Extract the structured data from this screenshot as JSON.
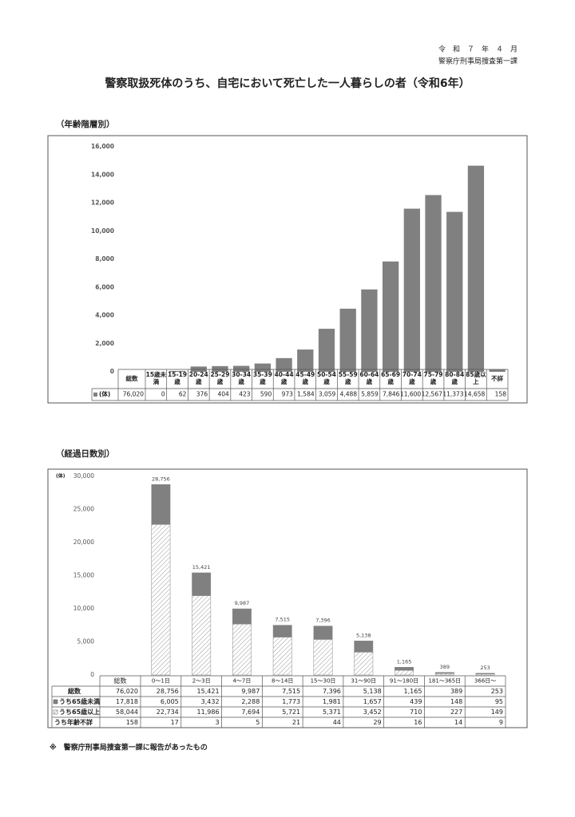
{
  "header": {
    "date": "令　和　７　年　４　月",
    "office": "警察庁刑事局捜査第一課",
    "title": "警察取扱死体のうち、自宅において死亡した一人暮らしの者（令和6年）"
  },
  "chart_data": [
    {
      "type": "bar",
      "title": "（年齢階層別）",
      "name": "(体)",
      "color": "#808080",
      "categories": [
        "15歳未満",
        "15-19歳",
        "20-24歳",
        "25-29歳",
        "30-34歳",
        "35-39歳",
        "40-44歳",
        "45-49歳",
        "50-54歳",
        "55-59歳",
        "60-64歳",
        "65-69歳",
        "70-74歳",
        "75-79歳",
        "80-84歳",
        "85歳以上",
        "不詳"
      ],
      "values": [
        0,
        62,
        376,
        404,
        423,
        590,
        973,
        1584,
        3059,
        4488,
        5859,
        7846,
        11600,
        12567,
        11373,
        14658,
        158
      ],
      "value_labels": [
        "0",
        "62",
        "376",
        "404",
        "423",
        "590",
        "973",
        "1,584",
        "3,059",
        "4,488",
        "5,859",
        "7,846",
        "11,600",
        "12,567",
        "11,373",
        "14,658",
        "158"
      ],
      "total_header": "総数",
      "total": {
        "value": 76020,
        "label": "76,020"
      },
      "ylim": [
        0,
        16000
      ],
      "yticks": [
        0,
        {
          "value": 2000,
          "label": "2,000"
        },
        {
          "value": 4000,
          "label": "4,000"
        },
        {
          "value": 6000,
          "label": "6,000"
        },
        {
          "value": 8000,
          "label": "8,000"
        },
        {
          "value": 10000,
          "label": "10,000"
        },
        {
          "value": 12000,
          "label": "12,000"
        },
        {
          "value": 14000,
          "label": "14,000"
        },
        {
          "value": 16000,
          "label": "16,000"
        }
      ]
    },
    {
      "type": "stacked_bar",
      "title": "（経過日数別）",
      "unit": "(体)",
      "total_header": "総数",
      "categories": [
        "0～1日",
        "2～3日",
        "4～7日",
        "8～14日",
        "15～30日",
        "31～90日",
        "91～180日",
        "181～365日",
        "366日～"
      ],
      "totals": {
        "name": "総数",
        "values": [
          28756,
          15421,
          9987,
          7515,
          7396,
          5138,
          1165,
          389,
          253
        ],
        "value_labels": [
          "28,756",
          "15,421",
          "9,987",
          "7,515",
          "7,396",
          "5,138",
          "1,165",
          "389",
          "253"
        ],
        "total": {
          "value": 76020,
          "label": "76,020"
        }
      },
      "series": [
        {
          "name": "うち65歳未満",
          "color": "#808080",
          "values": [
            6005,
            3432,
            2288,
            1773,
            1981,
            1657,
            439,
            148,
            95
          ],
          "value_labels": [
            "6,005",
            "3,432",
            "2,288",
            "1,773",
            "1,981",
            "1,657",
            "439",
            "148",
            "95"
          ],
          "total": {
            "value": 17818,
            "label": "17,818"
          }
        },
        {
          "name": "うち65歳以上",
          "color": "#ffffff",
          "hatch": true,
          "values": [
            22734,
            11986,
            7694,
            5721,
            5371,
            3452,
            710,
            227,
            149
          ],
          "value_labels": [
            "22,734",
            "11,986",
            "7,694",
            "5,721",
            "5,371",
            "3,452",
            "710",
            "227",
            "149"
          ],
          "total": {
            "value": 58044,
            "label": "58,044"
          }
        },
        {
          "name": "うち年齢不詳",
          "color": "#404040",
          "values": [
            17,
            3,
            5,
            21,
            44,
            29,
            16,
            14,
            9
          ],
          "total": {
            "value": 158,
            "label": "158"
          }
        }
      ],
      "ylim": [
        0,
        30000
      ],
      "yticks": [
        0,
        {
          "value": 5000,
          "label": "5,000"
        },
        {
          "value": 10000,
          "label": "10,000"
        },
        {
          "value": 15000,
          "label": "15,000"
        },
        {
          "value": 20000,
          "label": "20,000"
        },
        {
          "value": 25000,
          "label": "25,000"
        },
        {
          "value": 30000,
          "label": "30,000"
        }
      ]
    }
  ],
  "footnote": "※　警察庁刑事局捜査第一課に報告があったもの"
}
